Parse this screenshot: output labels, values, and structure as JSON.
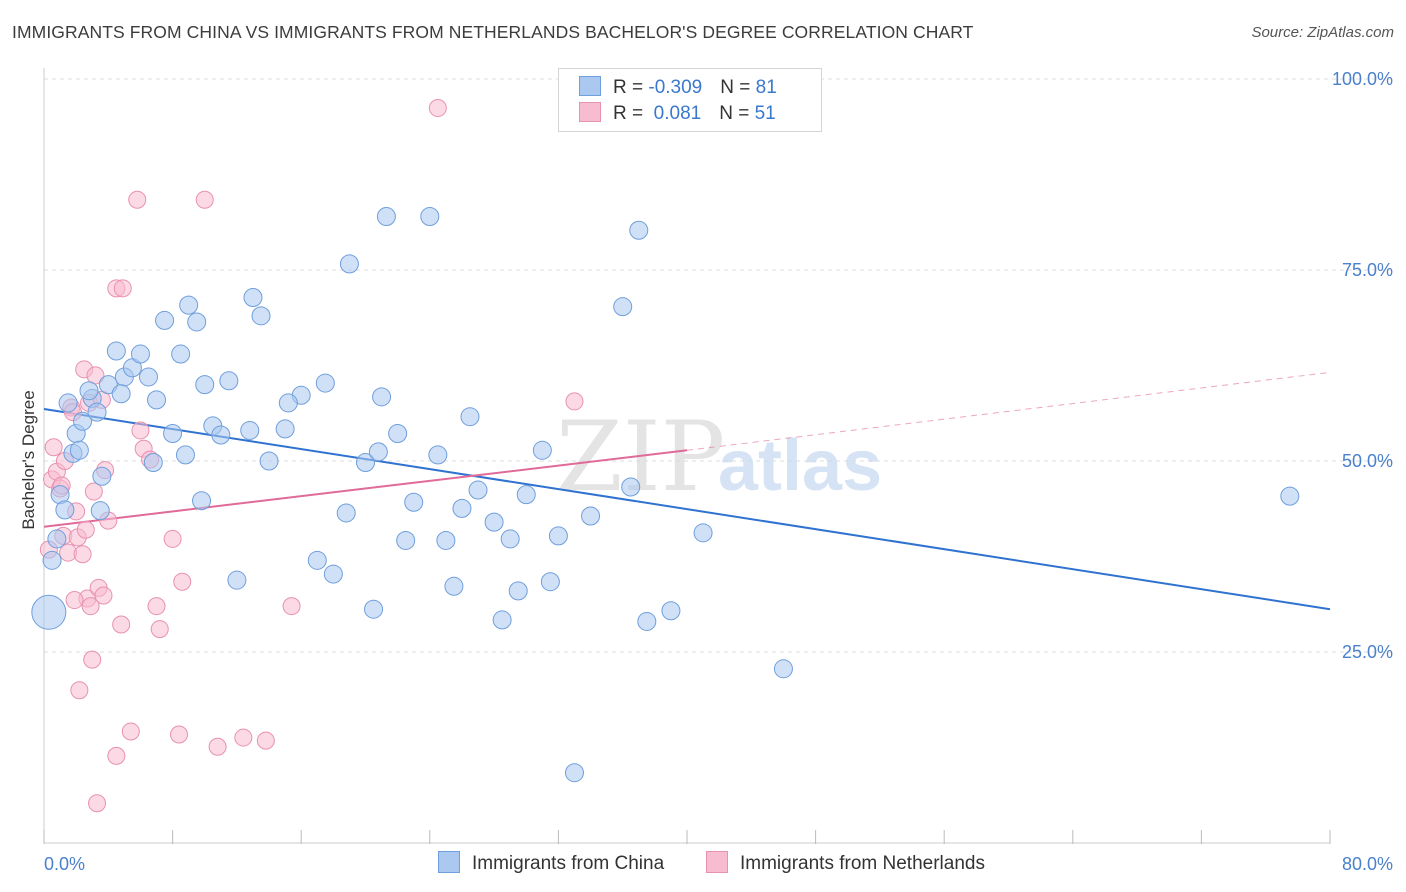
{
  "title": "IMMIGRANTS FROM CHINA VS IMMIGRANTS FROM NETHERLANDS BACHELOR'S DEGREE CORRELATION CHART",
  "source": "Source: ZipAtlas.com",
  "watermark": {
    "zip": "ZIP",
    "atlas": "atlas"
  },
  "colors": {
    "china_fill": "#aac8f0",
    "china_stroke": "#6f9fdc",
    "china_line": "#2f72d0",
    "neth_fill": "#f7bcd0",
    "neth_stroke": "#e891b0",
    "neth_line": "#e06a98",
    "grid": "#dedede",
    "axis_text": "#4a80cc"
  },
  "legend_top": {
    "rows": [
      {
        "r_label": "R = ",
        "r_value": "-0.309",
        "n_label": "N = ",
        "n_value": "81"
      },
      {
        "r_label": "R = ",
        "r_value": " 0.081",
        "n_label": "N = ",
        "n_value": "51"
      }
    ]
  },
  "legend_bottom": {
    "china": "Immigrants from China",
    "neth": "Immigrants from Netherlands"
  },
  "chart_data": {
    "type": "scatter",
    "title": "IMMIGRANTS FROM CHINA VS IMMIGRANTS FROM NETHERLANDS BACHELOR'S DEGREE CORRELATION CHART",
    "ylabel": "Bachelor's Degree",
    "xlabel": "",
    "xlim": [
      0,
      80
    ],
    "ylim": [
      0,
      100
    ],
    "x_tick_labels": {
      "left": "0.0%",
      "right": "80.0%"
    },
    "y_ticks": [
      25,
      50,
      75,
      100
    ],
    "y_tick_labels": [
      "25.0%",
      "50.0%",
      "75.0%",
      "100.0%"
    ],
    "grid": true,
    "legend_placement": "top-center",
    "series": [
      {
        "name": "Immigrants from China",
        "r": -0.309,
        "n": 81,
        "trend": {
          "x": [
            0,
            80
          ],
          "y": [
            56.8,
            30.6
          ]
        },
        "points": [
          [
            0.3,
            30.2
          ],
          [
            0.5,
            37.0
          ],
          [
            0.8,
            39.8
          ],
          [
            1.0,
            45.6
          ],
          [
            1.3,
            43.6
          ],
          [
            1.5,
            57.6
          ],
          [
            1.8,
            51.0
          ],
          [
            2.0,
            53.6
          ],
          [
            2.2,
            51.4
          ],
          [
            2.4,
            55.2
          ],
          [
            3.0,
            58.2
          ],
          [
            3.3,
            56.4
          ],
          [
            3.6,
            48.0
          ],
          [
            4.0,
            60.0
          ],
          [
            4.5,
            64.4
          ],
          [
            5.0,
            61.0
          ],
          [
            5.5,
            62.2
          ],
          [
            6.0,
            64.0
          ],
          [
            6.5,
            61.0
          ],
          [
            7.0,
            58.0
          ],
          [
            7.5,
            68.4
          ],
          [
            8.0,
            53.6
          ],
          [
            8.5,
            64.0
          ],
          [
            9.0,
            70.4
          ],
          [
            9.5,
            68.2
          ],
          [
            10.0,
            60.0
          ],
          [
            10.5,
            54.6
          ],
          [
            11.0,
            53.4
          ],
          [
            12.0,
            34.4
          ],
          [
            13.0,
            71.4
          ],
          [
            13.5,
            69.0
          ],
          [
            14.0,
            50.0
          ],
          [
            15.0,
            54.2
          ],
          [
            16.0,
            58.6
          ],
          [
            17.0,
            37.0
          ],
          [
            18.0,
            35.2
          ],
          [
            19.0,
            75.8
          ],
          [
            20.0,
            49.8
          ],
          [
            20.5,
            30.6
          ],
          [
            21.0,
            58.4
          ],
          [
            21.3,
            82.0
          ],
          [
            22.0,
            53.6
          ],
          [
            22.5,
            39.6
          ],
          [
            23.0,
            44.6
          ],
          [
            24.0,
            82.0
          ],
          [
            25.0,
            39.6
          ],
          [
            25.5,
            33.6
          ],
          [
            26.0,
            43.8
          ],
          [
            26.5,
            55.8
          ],
          [
            27.0,
            46.2
          ],
          [
            28.0,
            42.0
          ],
          [
            28.5,
            29.2
          ],
          [
            29.0,
            39.8
          ],
          [
            29.5,
            33.0
          ],
          [
            30.0,
            45.6
          ],
          [
            31.0,
            51.4
          ],
          [
            31.5,
            34.2
          ],
          [
            32.0,
            40.2
          ],
          [
            33.0,
            9.2
          ],
          [
            34.0,
            42.8
          ],
          [
            36.0,
            70.2
          ],
          [
            36.5,
            46.6
          ],
          [
            37.0,
            80.2
          ],
          [
            37.5,
            29.0
          ],
          [
            39.0,
            30.4
          ],
          [
            41.0,
            40.6
          ],
          [
            46.0,
            22.8
          ],
          [
            77.5,
            45.4
          ],
          [
            6.8,
            49.8
          ],
          [
            9.8,
            44.8
          ],
          [
            2.8,
            59.2
          ],
          [
            15.2,
            57.6
          ],
          [
            18.8,
            43.2
          ],
          [
            24.5,
            50.8
          ],
          [
            12.8,
            54.0
          ],
          [
            4.8,
            58.8
          ],
          [
            8.8,
            50.8
          ],
          [
            20.8,
            51.2
          ],
          [
            17.5,
            60.2
          ],
          [
            11.5,
            60.5
          ],
          [
            3.5,
            43.5
          ]
        ]
      },
      {
        "name": "Immigrants from Netherlands",
        "r": 0.081,
        "n": 51,
        "trend": {
          "x": [
            0,
            40
          ],
          "y": [
            41.4,
            51.4
          ]
        },
        "trend_dashed": {
          "x": [
            40,
            80
          ],
          "y": [
            51.4,
            61.6
          ]
        },
        "points": [
          [
            0.3,
            38.4
          ],
          [
            0.5,
            47.6
          ],
          [
            0.6,
            51.8
          ],
          [
            0.8,
            48.6
          ],
          [
            1.0,
            46.4
          ],
          [
            1.2,
            40.2
          ],
          [
            1.3,
            50.0
          ],
          [
            1.5,
            38.0
          ],
          [
            1.7,
            57.0
          ],
          [
            1.8,
            56.4
          ],
          [
            2.0,
            43.4
          ],
          [
            2.1,
            40.0
          ],
          [
            2.2,
            20.0
          ],
          [
            2.4,
            37.8
          ],
          [
            2.5,
            62.0
          ],
          [
            2.7,
            32.0
          ],
          [
            2.8,
            57.6
          ],
          [
            2.9,
            31.0
          ],
          [
            3.0,
            24.0
          ],
          [
            3.1,
            46.0
          ],
          [
            3.2,
            61.2
          ],
          [
            3.3,
            5.2
          ],
          [
            3.4,
            33.4
          ],
          [
            3.6,
            58.0
          ],
          [
            3.8,
            48.8
          ],
          [
            4.0,
            42.2
          ],
          [
            4.5,
            11.4
          ],
          [
            4.8,
            28.6
          ],
          [
            5.4,
            14.6
          ],
          [
            5.8,
            84.2
          ],
          [
            6.0,
            54.0
          ],
          [
            6.2,
            51.6
          ],
          [
            6.6,
            50.2
          ],
          [
            7.0,
            31.0
          ],
          [
            7.2,
            28.0
          ],
          [
            8.0,
            39.8
          ],
          [
            8.4,
            14.2
          ],
          [
            8.6,
            34.2
          ],
          [
            10.0,
            84.2
          ],
          [
            10.8,
            12.6
          ],
          [
            12.4,
            13.8
          ],
          [
            13.8,
            13.4
          ],
          [
            15.4,
            31.0
          ],
          [
            24.5,
            96.2
          ],
          [
            33.0,
            57.8
          ],
          [
            4.5,
            72.6
          ],
          [
            4.9,
            72.6
          ],
          [
            1.9,
            31.8
          ],
          [
            2.6,
            41.0
          ],
          [
            1.1,
            46.8
          ],
          [
            3.7,
            32.4
          ]
        ]
      }
    ]
  }
}
